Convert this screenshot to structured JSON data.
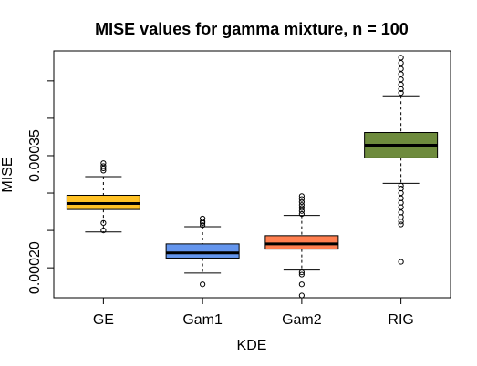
{
  "chart_data": {
    "type": "boxplot",
    "title": "MISE values for gamma mixture, n = 100",
    "xlabel": "KDE",
    "ylabel": "MISE",
    "categories": [
      "GE",
      "Gam1",
      "Gam2",
      "RIG"
    ],
    "ylim": [
      0.00016,
      0.00049
    ],
    "yticks": [
      0.0002,
      0.00025,
      0.0003,
      0.00035,
      0.0004,
      0.00045
    ],
    "ytick_labels": [
      "0.00020",
      "",
      "",
      "0.00035",
      "",
      ""
    ],
    "grid": false,
    "boxes": [
      {
        "name": "GE",
        "color": "#FFC125",
        "whisker_low": 0.000248,
        "q1": 0.000278,
        "median": 0.000286,
        "q3": 0.000297,
        "whisker_high": 0.000322,
        "outliers": [
          0.00026,
          0.00025,
          0.00033,
          0.000333,
          0.000336,
          0.00034
        ]
      },
      {
        "name": "Gam1",
        "color": "#6495ED",
        "whisker_low": 0.000193,
        "q1": 0.000213,
        "median": 0.00022,
        "q3": 0.000232,
        "whisker_high": 0.000255,
        "outliers": [
          0.000178,
          0.000257,
          0.00026,
          0.000262,
          0.000266
        ]
      },
      {
        "name": "Gam2",
        "color": "#FF7F50",
        "whisker_low": 0.000197,
        "q1": 0.000225,
        "median": 0.000232,
        "q3": 0.000243,
        "whisker_high": 0.00027,
        "outliers": [
          0.000163,
          0.000178,
          0.000191,
          0.000194,
          0.000272,
          0.000276,
          0.00028,
          0.000284,
          0.000288,
          0.000292,
          0.000296
        ]
      },
      {
        "name": "RIG",
        "color": "#6E8B3D",
        "whisker_low": 0.000313,
        "q1": 0.000347,
        "median": 0.000364,
        "q3": 0.000381,
        "whisker_high": 0.00043,
        "outliers": [
          0.000208,
          0.000258,
          0.000262,
          0.000268,
          0.000274,
          0.000281,
          0.000287,
          0.000293,
          0.0003,
          0.000306,
          0.00031,
          0.000434,
          0.000439,
          0.000445,
          0.000452,
          0.000459,
          0.000466,
          0.000474,
          0.000481
        ]
      }
    ]
  }
}
